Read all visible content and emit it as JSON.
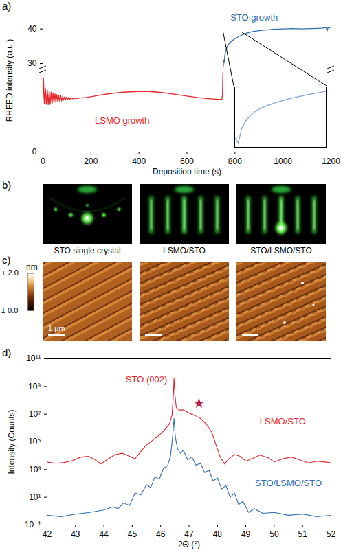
{
  "chart_data": [
    {
      "type": "line",
      "title": "a)",
      "x_label": "Deposition time (s)",
      "y_label": "RHEED intensity (a.u.)",
      "xlim": [
        0,
        1200
      ],
      "xticks": [
        0,
        200,
        400,
        600,
        800,
        1000,
        1200
      ],
      "ylim": [
        0,
        45.5
      ],
      "yticks": [
        0,
        30,
        40
      ],
      "y_break": [
        23,
        29
      ],
      "series": [
        {
          "name": "LSMO growth",
          "color": "#e8262b",
          "x": [
            0,
            2,
            6,
            10,
            14,
            18,
            22,
            26,
            30,
            34,
            38,
            42,
            46,
            50,
            54,
            58,
            62,
            66,
            70,
            74,
            78,
            82,
            86,
            90,
            94,
            98,
            103,
            108,
            113,
            118,
            124,
            130,
            140,
            150,
            165,
            180,
            200,
            240,
            280,
            320,
            360,
            400,
            440,
            480,
            520,
            560,
            600,
            640,
            680,
            720,
            745,
            748,
            750,
            752
          ],
          "values": [
            15,
            21.5,
            14,
            18.5,
            13.8,
            18,
            13.7,
            17.6,
            13.8,
            17.3,
            14,
            17,
            14.2,
            16.8,
            14.4,
            16.6,
            14.5,
            16.4,
            14.7,
            16.3,
            14.8,
            16.1,
            15,
            16,
            15.1,
            15.9,
            15.2,
            15.8,
            15.3,
            15.7,
            15.4,
            15.6,
            15.5,
            15.6,
            15.7,
            15.8,
            16,
            16.5,
            16.9,
            17.2,
            17.4,
            17.5,
            17.5,
            17.3,
            17,
            16.6,
            16.2,
            15.8,
            15.5,
            15.3,
            15.2,
            16.5,
            24,
            31
          ]
        },
        {
          "name": "STO growth",
          "color": "#2f6db4",
          "x": [
            752,
            755,
            758,
            762,
            766,
            770,
            775,
            780,
            790,
            800,
            815,
            830,
            850,
            870,
            900,
            930,
            960,
            1000,
            1040,
            1080,
            1120,
            1160,
            1180,
            1184,
            1188,
            1195
          ],
          "values": [
            31,
            30.2,
            32.5,
            33.8,
            34.6,
            35.2,
            35.7,
            36.1,
            36.7,
            37.2,
            37.8,
            38.3,
            38.8,
            39.2,
            39.5,
            39.7,
            39.9,
            40,
            40.1,
            40,
            40.1,
            40.2,
            40.4,
            39.4,
            40.5,
            40.3
          ]
        }
      ],
      "annotations": [
        {
          "series": "LSMO growth",
          "x": 330,
          "y": 9
        },
        {
          "series": "STO growth",
          "x": 880,
          "y": 43.3
        }
      ],
      "inset": {
        "series": "STO growth",
        "color": "#7ea6d8",
        "xlim": [
          752,
          830
        ],
        "ylim": [
          29.5,
          39
        ]
      }
    },
    {
      "type": "line",
      "title": "d)",
      "x_label": "2Θ (°)",
      "y_label": "Intensity (Counts)",
      "log": "y",
      "xlim": [
        42,
        52
      ],
      "xticks": [
        42,
        43,
        44,
        45,
        46,
        47,
        48,
        49,
        50,
        51,
        52
      ],
      "ylim": [
        0.1,
        100000000000
      ],
      "yticks": [
        {
          "value": 0.1,
          "label": "10⁻¹"
        },
        {
          "value": 10,
          "label": "10¹"
        },
        {
          "value": 1000,
          "label": "10³"
        },
        {
          "value": 100000,
          "label": "10⁵"
        },
        {
          "value": 10000000,
          "label": "10⁷"
        },
        {
          "value": 1000000000,
          "label": "10⁹"
        },
        {
          "value": 100000000000,
          "label": "10¹¹"
        }
      ],
      "series": [
        {
          "name": "LSMO/STO",
          "color": "#e8262b",
          "x": [
            42.0,
            42.3,
            42.6,
            42.9,
            43.2,
            43.45,
            43.7,
            43.9,
            44.1,
            44.4,
            44.65,
            44.9,
            45.1,
            45.3,
            45.5,
            45.7,
            45.9,
            46.1,
            46.3,
            46.4,
            46.45,
            46.47,
            46.5,
            46.55,
            46.65,
            46.8,
            47.0,
            47.2,
            47.4,
            47.6,
            47.8,
            47.95,
            48.1,
            48.25,
            48.4,
            48.6,
            48.8,
            49.0,
            49.2,
            49.5,
            49.8,
            50.0,
            50.3,
            50.6,
            50.9,
            51.2,
            51.5,
            51.8,
            52.0
          ],
          "values": [
            3500,
            2800,
            3200,
            4500,
            8000,
            9000,
            5000,
            2500,
            5000,
            12000,
            15000,
            9000,
            6000,
            20000,
            60000,
            120000,
            250000,
            600000,
            1800000,
            8000000,
            300000000,
            4000000000,
            300000000,
            30000000,
            20000000,
            20000000,
            12000000,
            8000000,
            5000000,
            2000000,
            500000,
            60000,
            8000,
            2500,
            6000,
            12000,
            9000,
            4000,
            6000,
            11000,
            7000,
            3500,
            6000,
            8000,
            5000,
            3000,
            4000,
            3500,
            3000
          ]
        },
        {
          "name": "STO/LSMO/STO",
          "color": "#2f6db4",
          "x": [
            42.0,
            42.5,
            43.0,
            43.5,
            44.0,
            44.3,
            44.5,
            44.7,
            44.9,
            45.1,
            45.3,
            45.5,
            45.65,
            45.8,
            45.95,
            46.1,
            46.25,
            46.35,
            46.42,
            46.47,
            46.52,
            46.6,
            46.7,
            46.8,
            46.95,
            47.1,
            47.25,
            47.4,
            47.55,
            47.7,
            47.85,
            48.0,
            48.15,
            48.3,
            48.45,
            48.6,
            48.75,
            48.9,
            49.1,
            49.3,
            49.6,
            50.0,
            50.5,
            51.0,
            51.5,
            52.0
          ],
          "values": [
            0.5,
            0.4,
            0.6,
            0.8,
            1.2,
            2,
            1.5,
            4,
            2.5,
            20,
            15,
            80,
            50,
            300,
            200,
            1200,
            2000,
            10000,
            200000,
            5000000,
            200000,
            30000,
            15000,
            25000,
            5000,
            8000,
            2000,
            3000,
            600,
            900,
            150,
            250,
            40,
            70,
            10,
            20,
            3,
            5,
            0.8,
            1.5,
            0.7,
            0.8,
            0.5,
            0.6,
            0.4,
            0.5
          ]
        }
      ],
      "annotations": [
        {
          "text": "STO (002)",
          "color": "#e8262b",
          "x": 45.5,
          "y": 3000000000
        },
        {
          "text": "★",
          "color": "#c02048",
          "x": 47.35,
          "y": 60000000
        },
        {
          "series": "LSMO/STO",
          "x": 50.3,
          "y": 3000000
        },
        {
          "series": "STO/LSMO/STO",
          "x": 50.5,
          "y": 100
        }
      ]
    }
  ],
  "images": [
    {
      "kind": "rheed",
      "title": "b)",
      "captions": [
        "STO single crystal",
        "LSMO/STO",
        "STO/LSMO/STO"
      ]
    },
    {
      "kind": "afm",
      "title": "c)",
      "scale_bar": "1 µm",
      "colorbar": {
        "label": "nm",
        "range": [
          0,
          2.0
        ],
        "ticks": [
          {
            "value": 2.0,
            "label": "+ 2.0"
          },
          {
            "value": 0,
            "label": "± 0.0"
          }
        ]
      }
    }
  ]
}
